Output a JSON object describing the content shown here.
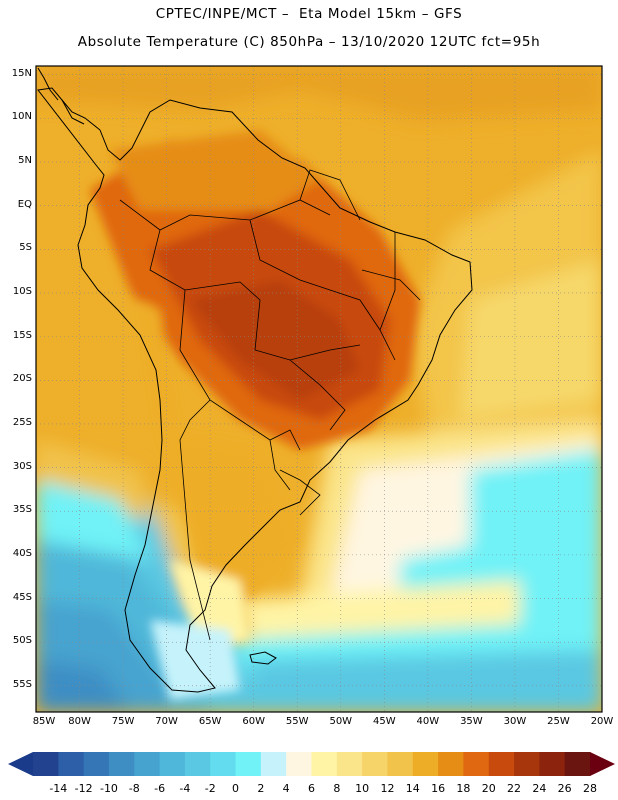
{
  "title": {
    "line1": "CPTEC/INPE/MCT –  Eta Model 15km – GFS",
    "line2": "Absolute Temperature (C) 850hPa – 13/10/2020 12UTC fct=95h"
  },
  "map": {
    "lat_labels": [
      "15N",
      "10N",
      "5N",
      "EQ",
      "5S",
      "10S",
      "15S",
      "20S",
      "25S",
      "30S",
      "35S",
      "40S",
      "45S",
      "50S",
      "55S"
    ],
    "lat_values": [
      15,
      10,
      5,
      0,
      -5,
      -10,
      -15,
      -20,
      -25,
      -30,
      -35,
      -40,
      -45,
      -50,
      -55
    ],
    "lon_labels": [
      "85W",
      "80W",
      "75W",
      "70W",
      "65W",
      "60W",
      "55W",
      "50W",
      "45W",
      "40W",
      "35W",
      "30W",
      "25W",
      "20W"
    ],
    "lon_values": [
      -85,
      -80,
      -75,
      -70,
      -65,
      -60,
      -55,
      -50,
      -45,
      -40,
      -35,
      -30,
      -25,
      -20
    ],
    "lat_range": [
      -58,
      16
    ],
    "lon_range": [
      -85,
      -20
    ]
  },
  "colorbar": {
    "labels": [
      "-14",
      "-12",
      "-10",
      "-8",
      "-6",
      "-4",
      "-2",
      "0",
      "2",
      "4",
      "6",
      "8",
      "10",
      "12",
      "14",
      "16",
      "18",
      "20",
      "22",
      "24",
      "26",
      "28"
    ],
    "low_color": "#1a3a8a",
    "high_color": "#6b0010",
    "colors": [
      "#22428f",
      "#2d5ea8",
      "#3577b6",
      "#3e8ec4",
      "#46a3cf",
      "#4fb7d9",
      "#5ac8e2",
      "#63dcef",
      "#70f2f7",
      "#c6f3fb",
      "#fff6e2",
      "#fff4a6",
      "#fbe58a",
      "#f6d469",
      "#f1c34b",
      "#eead26",
      "#e68d16",
      "#e06810",
      "#c84a0c",
      "#a8360d",
      "#8c240d",
      "#6b1510"
    ]
  }
}
